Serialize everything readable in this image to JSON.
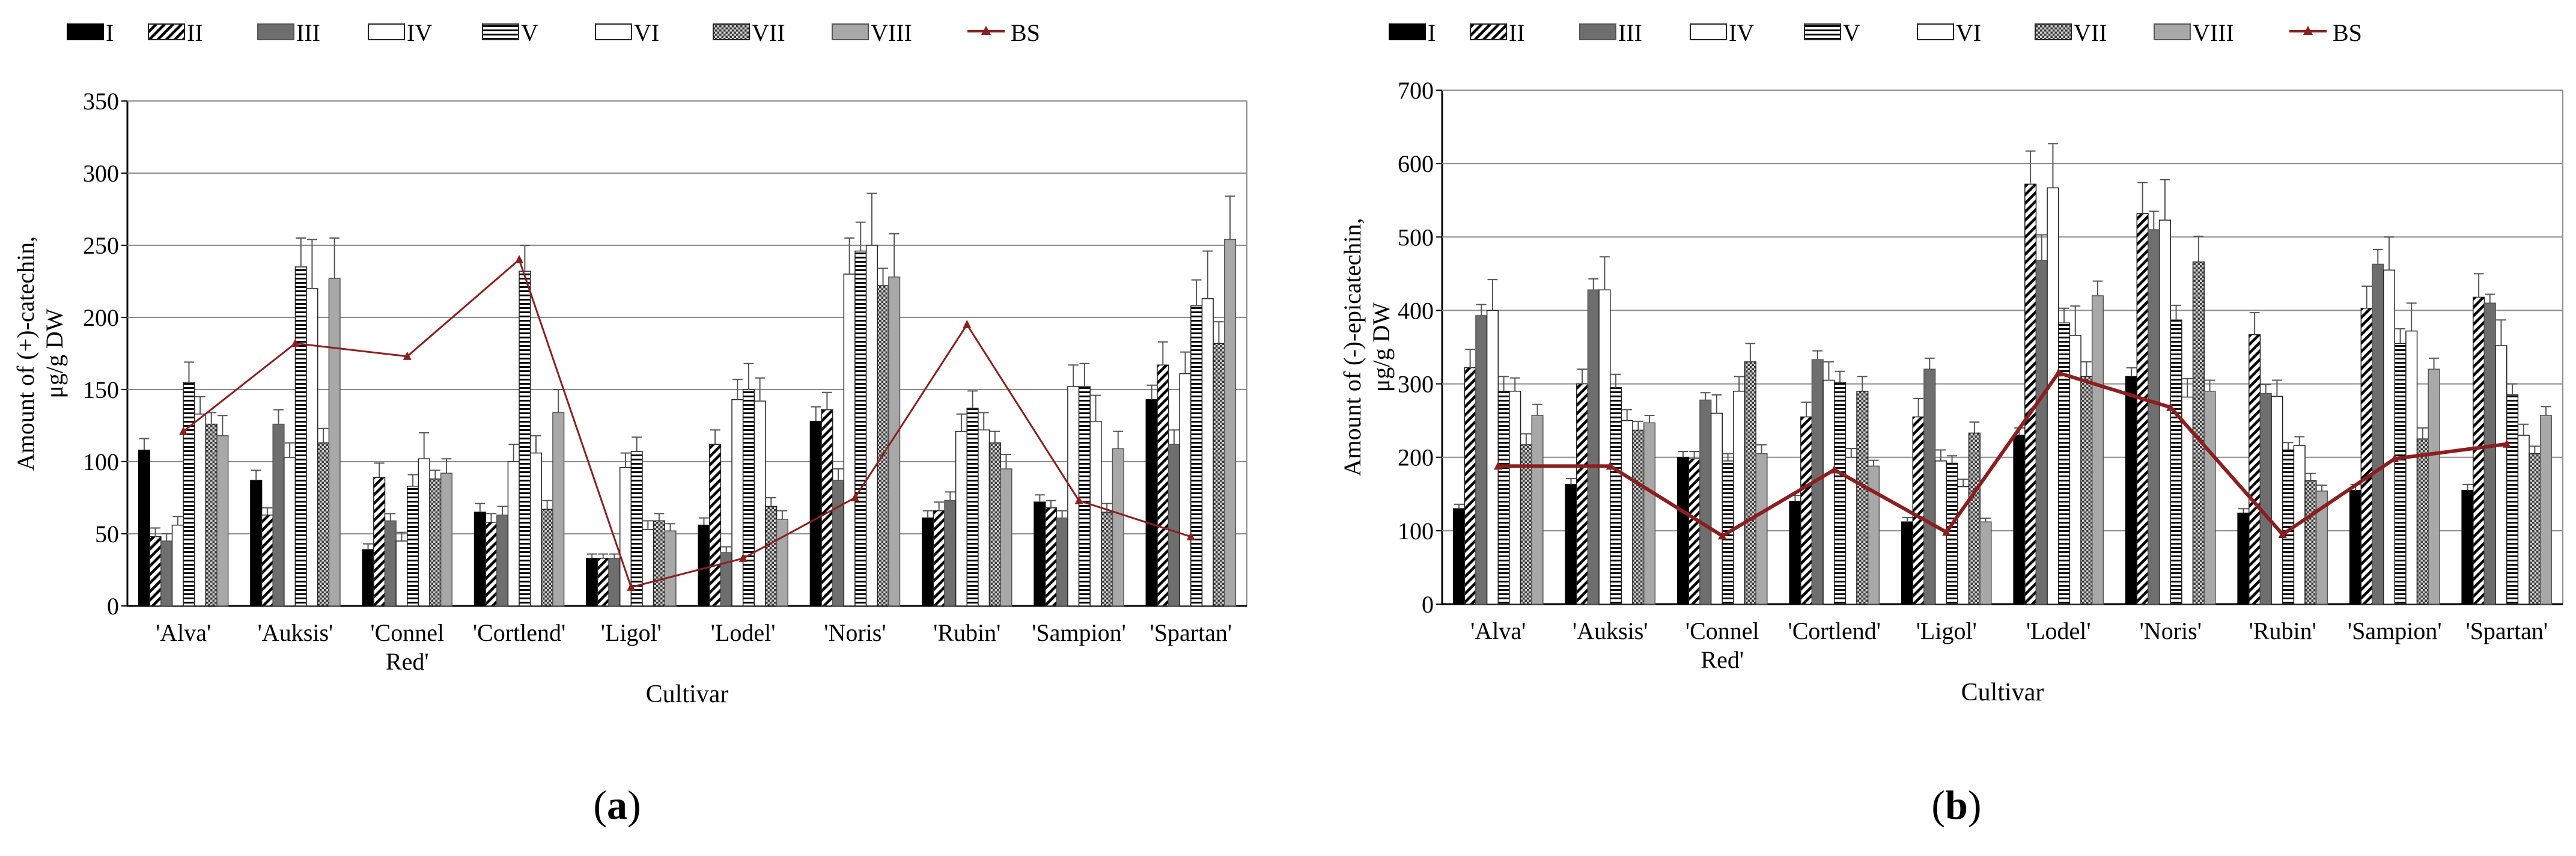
{
  "figure": {
    "captions": [
      {
        "open": "(",
        "letter": "a",
        "close": ")"
      },
      {
        "open": "(",
        "letter": "b",
        "close": ")"
      }
    ]
  },
  "legend": {
    "items": [
      "I",
      "II",
      "III",
      "IV",
      "V",
      "VI",
      "VII",
      "VIII",
      "BS"
    ]
  },
  "colors": {
    "I": "#000000",
    "III": "#6e6e6e",
    "VIII": "#a8a8a8",
    "BS": "#8b1f1f",
    "frame": "#8c8c8c",
    "grid": "#8c8c8c"
  },
  "chart_data": [
    {
      "type": "bar",
      "title": "",
      "xlabel": "Cultivar",
      "ylabel": "Amount of (+)-catechin, μg/g DW",
      "ylim": [
        0,
        350
      ],
      "yticks": [
        0,
        50,
        100,
        150,
        200,
        250,
        300,
        350
      ],
      "categories": [
        "'Alva'",
        "'Auksis'",
        "'Connel Red'",
        "'Cortlend'",
        "'Ligol'",
        "'Lodel'",
        "'Noris'",
        "'Rubin'",
        "'Sampion'",
        "'Spartan'"
      ],
      "series": [
        {
          "name": "I",
          "values": [
            108,
            87,
            39,
            65,
            33,
            56,
            128,
            61,
            72,
            143
          ]
        },
        {
          "name": "II",
          "values": [
            48,
            63,
            89,
            58,
            33,
            112,
            136,
            66,
            68,
            167
          ]
        },
        {
          "name": "III",
          "values": [
            45,
            126,
            59,
            63,
            33,
            37,
            87,
            73,
            61,
            112
          ]
        },
        {
          "name": "IV",
          "values": [
            56,
            103,
            45,
            100,
            96,
            143,
            230,
            121,
            152,
            161
          ]
        },
        {
          "name": "V",
          "values": [
            155,
            235,
            83,
            232,
            107,
            150,
            246,
            137,
            152,
            208
          ]
        },
        {
          "name": "VI",
          "values": [
            133,
            220,
            102,
            106,
            53,
            142,
            250,
            122,
            128,
            213
          ]
        },
        {
          "name": "VII",
          "values": [
            126,
            113,
            88,
            67,
            59,
            69,
            222,
            113,
            65,
            182
          ]
        },
        {
          "name": "VIII",
          "values": [
            118,
            227,
            92,
            134,
            52,
            60,
            228,
            95,
            109,
            254
          ]
        },
        {
          "name": "BS",
          "type": "line",
          "values": [
            121,
            182,
            173,
            240,
            13,
            33,
            75,
            195,
            73,
            48
          ]
        }
      ],
      "errors": {
        "I": [
          8,
          7,
          4,
          6,
          3,
          5,
          10,
          5,
          5,
          10
        ],
        "II": [
          6,
          5,
          10,
          6,
          3,
          10,
          12,
          6,
          5,
          16
        ],
        "III": [
          5,
          10,
          5,
          6,
          3,
          4,
          8,
          6,
          5,
          10
        ],
        "IV": [
          6,
          10,
          6,
          12,
          10,
          14,
          25,
          12,
          15,
          15
        ],
        "V": [
          14,
          20,
          8,
          18,
          10,
          18,
          20,
          12,
          16,
          18
        ],
        "VI": [
          12,
          34,
          18,
          12,
          6,
          16,
          36,
          12,
          18,
          33
        ],
        "VII": [
          8,
          10,
          6,
          6,
          5,
          6,
          12,
          8,
          6,
          15
        ],
        "VIII": [
          14,
          28,
          10,
          16,
          5,
          6,
          30,
          10,
          12,
          30
        ]
      }
    },
    {
      "type": "bar",
      "title": "",
      "xlabel": "Cultivar",
      "ylabel": "Amount of (-)-epicatechin, μg/g DW",
      "ylim": [
        0,
        700
      ],
      "yticks": [
        0,
        100,
        200,
        300,
        400,
        500,
        600,
        700
      ],
      "categories": [
        "'Alva'",
        "'Auksis'",
        "'Connel Red'",
        "'Cortlend'",
        "'Ligol'",
        "'Lodel'",
        "'Noris'",
        "'Rubin'",
        "'Sampion'",
        "'Spartan'"
      ],
      "series": [
        {
          "name": "I",
          "values": [
            130,
            163,
            200,
            140,
            112,
            230,
            310,
            124,
            155,
            155
          ]
        },
        {
          "name": "II",
          "values": [
            322,
            300,
            198,
            255,
            255,
            572,
            532,
            367,
            403,
            418
          ]
        },
        {
          "name": "III",
          "values": [
            393,
            428,
            278,
            333,
            320,
            468,
            510,
            287,
            463,
            410
          ]
        },
        {
          "name": "IV",
          "values": [
            400,
            428,
            260,
            305,
            195,
            567,
            523,
            283,
            455,
            352
          ]
        },
        {
          "name": "V",
          "values": [
            290,
            295,
            195,
            302,
            192,
            383,
            387,
            210,
            355,
            285
          ]
        },
        {
          "name": "VI",
          "values": [
            290,
            250,
            290,
            200,
            160,
            366,
            282,
            216,
            372,
            230
          ]
        },
        {
          "name": "VII",
          "values": [
            217,
            237,
            330,
            290,
            233,
            310,
            466,
            168,
            225,
            205
          ]
        },
        {
          "name": "VIII",
          "values": [
            257,
            247,
            205,
            188,
            112,
            420,
            290,
            154,
            320,
            257
          ]
        },
        {
          "name": "BS",
          "type": "line",
          "values": [
            188,
            188,
            93,
            183,
            98,
            315,
            268,
            95,
            198,
            218
          ]
        }
      ],
      "errors": {
        "I": [
          6,
          8,
          8,
          8,
          6,
          10,
          12,
          6,
          8,
          8
        ],
        "II": [
          25,
          20,
          10,
          20,
          25,
          45,
          42,
          30,
          30,
          32
        ],
        "III": [
          15,
          15,
          10,
          12,
          15,
          35,
          25,
          12,
          20,
          12
        ],
        "IV": [
          42,
          45,
          25,
          25,
          15,
          60,
          55,
          22,
          45,
          35
        ],
        "V": [
          20,
          18,
          10,
          15,
          10,
          20,
          20,
          10,
          20,
          15
        ],
        "VI": [
          18,
          15,
          20,
          12,
          10,
          40,
          25,
          12,
          38,
          15
        ],
        "VII": [
          15,
          12,
          25,
          20,
          15,
          20,
          35,
          10,
          15,
          10
        ],
        "VIII": [
          15,
          10,
          12,
          8,
          5,
          20,
          15,
          8,
          15,
          12
        ]
      }
    }
  ]
}
